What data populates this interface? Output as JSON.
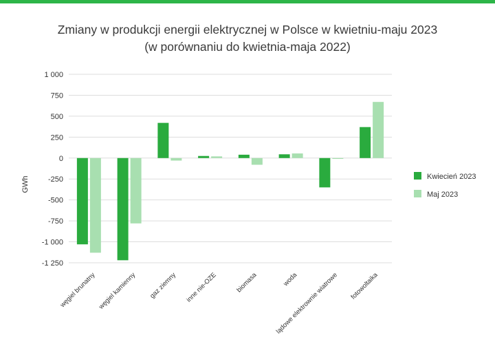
{
  "colors": {
    "accent": "#2db548",
    "series1": "#2aab3e",
    "series2": "#a8dfb0",
    "grid": "#dddddd"
  },
  "chart_data": {
    "type": "bar",
    "title": "Zmiany w produkcji energii elektrycznej w Polsce w kwietniu-maju 2023",
    "subtitle": "(w porównaniu do kwietnia-maja 2022)",
    "ylabel": "GWh",
    "ylim": [
      -1250,
      1000
    ],
    "yticks": [
      1000,
      750,
      500,
      250,
      0,
      -250,
      -500,
      -750,
      -1000,
      -1250
    ],
    "ytick_labels": [
      "1 000",
      "750",
      "500",
      "250",
      "0",
      "-250",
      "-500",
      "-750",
      "-1 000",
      "-1 250"
    ],
    "categories": [
      "węgiel brunatny",
      "węgiel kamienny",
      "gaz ziemny",
      "inne nie-OZE",
      "biomasa",
      "woda",
      "lądowe elektrownie wiatrowe",
      "fotowoltaika"
    ],
    "series": [
      {
        "name": "Kwiecień 2023",
        "values": [
          -1030,
          -1220,
          420,
          25,
          40,
          45,
          -350,
          370
        ]
      },
      {
        "name": "Maj 2023",
        "values": [
          -1130,
          -780,
          -30,
          20,
          -80,
          55,
          -10,
          670
        ]
      }
    ],
    "legend_position": "right",
    "grid": true
  }
}
